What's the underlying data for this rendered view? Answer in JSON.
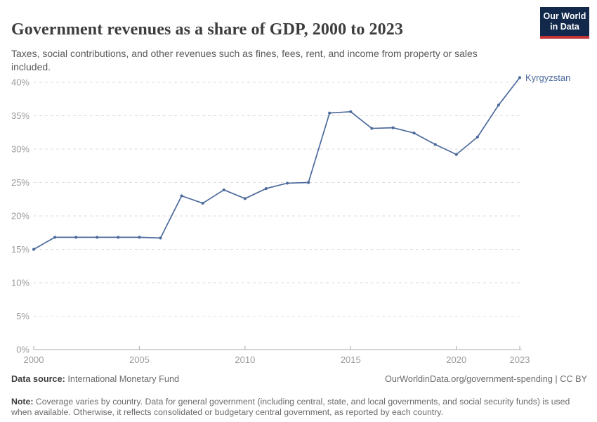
{
  "header": {
    "title": "Government revenues as a share of GDP, 2000 to 2023",
    "subtitle": "Taxes, social contributions, and other revenues such as fines, fees, rent, and income from property or sales included.",
    "logo": {
      "line1": "Our World",
      "line2": "in Data",
      "bg_color": "#12294b",
      "accent_color": "#c23335"
    }
  },
  "chart_data": {
    "type": "line",
    "title": "Government revenues as a share of GDP, 2000 to 2023",
    "x": [
      2000,
      2001,
      2002,
      2003,
      2004,
      2005,
      2006,
      2007,
      2008,
      2009,
      2010,
      2011,
      2012,
      2013,
      2014,
      2015,
      2016,
      2017,
      2018,
      2019,
      2020,
      2021,
      2022,
      2023
    ],
    "series": [
      {
        "name": "Kyrgyzstan",
        "color": "#4c6a9c",
        "values": [
          15.0,
          16.8,
          16.8,
          16.8,
          16.8,
          16.8,
          16.7,
          23.0,
          21.9,
          23.9,
          22.6,
          24.1,
          24.9,
          25.0,
          35.4,
          35.6,
          33.1,
          33.2,
          32.4,
          30.7,
          29.2,
          31.8,
          36.6,
          40.7
        ]
      }
    ],
    "xlabel": "",
    "ylabel": "",
    "x_ticks": [
      2000,
      2005,
      2010,
      2015,
      2020,
      2023
    ],
    "y_tick_values": [
      0,
      5,
      10,
      15,
      20,
      25,
      30,
      35,
      40
    ],
    "y_tick_labels": [
      "0%",
      "5%",
      "10%",
      "15%",
      "20%",
      "25%",
      "30%",
      "35%",
      "40%"
    ],
    "ylim": [
      0,
      40
    ],
    "grid": "horizontal-dashed",
    "legend_position": "end-of-line-label",
    "colors": {
      "grid_line": "#dedede",
      "axis_line": "#a8a8a8",
      "axis_text": "#9b9b9b"
    }
  },
  "footer": {
    "datasource_label": "Data source:",
    "datasource_value": " International Monetary Fund",
    "rights": "OurWorldinData.org/government-spending | CC BY",
    "note_label": "Note:",
    "note_text": " Coverage varies by country. Data for general government (including central, state, and local governments, and social security funds) is used when available. Otherwise, it reflects consolidated or budgetary central government, as reported by each country."
  }
}
